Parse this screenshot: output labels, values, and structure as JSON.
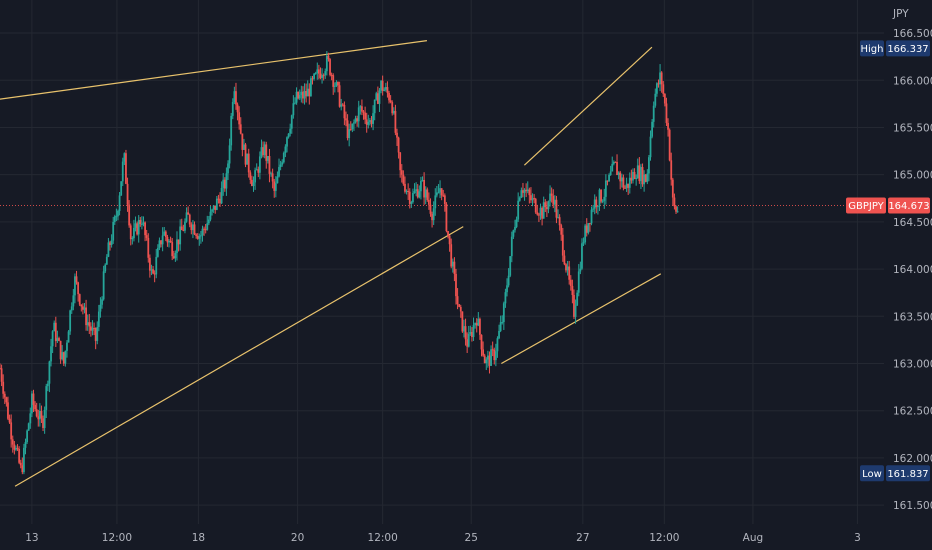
{
  "chart_data": {
    "type": "candlestick",
    "symbol": "GBPJPY",
    "currency": "JPY",
    "last_price": 164.673,
    "high": 166.337,
    "low": 161.837,
    "ylim": [
      161.3,
      166.85
    ],
    "y_ticks": [
      "166.500",
      "166.000",
      "165.500",
      "165.000",
      "164.500",
      "164.000",
      "163.500",
      "163.000",
      "162.500",
      "162.000",
      "161.500"
    ],
    "x_ticks": [
      "13",
      "12:00",
      "18",
      "20",
      "12:00",
      "25",
      "27",
      "12:00",
      "Aug",
      "3"
    ],
    "grid": true,
    "price_path": [
      [
        0.0,
        162.95
      ],
      [
        0.6,
        162.3
      ],
      [
        1.2,
        161.85
      ],
      [
        1.8,
        162.6
      ],
      [
        2.4,
        162.35
      ],
      [
        3.0,
        163.4
      ],
      [
        3.6,
        163.0
      ],
      [
        4.2,
        163.9
      ],
      [
        4.8,
        163.5
      ],
      [
        5.4,
        163.25
      ],
      [
        6.0,
        164.1
      ],
      [
        6.6,
        164.6
      ],
      [
        7.0,
        165.2
      ],
      [
        7.4,
        164.3
      ],
      [
        8.0,
        164.55
      ],
      [
        8.6,
        163.9
      ],
      [
        9.2,
        164.4
      ],
      [
        9.8,
        164.2
      ],
      [
        10.6,
        164.55
      ],
      [
        11.3,
        164.35
      ],
      [
        12.0,
        164.6
      ],
      [
        12.8,
        164.95
      ],
      [
        13.2,
        166.0
      ],
      [
        13.7,
        165.3
      ],
      [
        14.3,
        164.9
      ],
      [
        14.9,
        165.3
      ],
      [
        15.5,
        164.8
      ],
      [
        16.1,
        165.35
      ],
      [
        16.7,
        165.8
      ],
      [
        17.3,
        165.85
      ],
      [
        17.9,
        166.05
      ],
      [
        18.5,
        166.2
      ],
      [
        19.1,
        165.85
      ],
      [
        19.7,
        165.4
      ],
      [
        20.3,
        165.7
      ],
      [
        20.9,
        165.55
      ],
      [
        21.5,
        165.95
      ],
      [
        22.1,
        165.8
      ],
      [
        22.6,
        165.0
      ],
      [
        23.2,
        164.75
      ],
      [
        23.8,
        164.9
      ],
      [
        24.4,
        164.6
      ],
      [
        24.9,
        164.9
      ],
      [
        25.4,
        164.2
      ],
      [
        25.9,
        163.55
      ],
      [
        26.4,
        163.2
      ],
      [
        26.9,
        163.5
      ],
      [
        27.4,
        163.0
      ],
      [
        27.9,
        163.1
      ],
      [
        28.4,
        163.5
      ],
      [
        28.9,
        164.3
      ],
      [
        29.4,
        164.9
      ],
      [
        29.9,
        164.75
      ],
      [
        30.6,
        164.6
      ],
      [
        31.2,
        164.8
      ],
      [
        31.8,
        164.2
      ],
      [
        32.4,
        163.55
      ],
      [
        32.9,
        164.3
      ],
      [
        33.5,
        164.7
      ],
      [
        34.1,
        164.8
      ],
      [
        34.7,
        165.1
      ],
      [
        35.3,
        164.85
      ],
      [
        35.9,
        165.05
      ],
      [
        36.5,
        164.95
      ],
      [
        36.9,
        165.8
      ],
      [
        37.3,
        166.05
      ],
      [
        37.7,
        165.5
      ],
      [
        38.0,
        164.65
      ],
      [
        38.3,
        164.6
      ]
    ],
    "x_range": [
      0,
      49.9
    ],
    "trend_lines": [
      {
        "p1": [
          0.0,
          165.8
        ],
        "p2": [
          24.1,
          166.42
        ]
      },
      {
        "p1": [
          0.85,
          161.7
        ],
        "p2": [
          26.15,
          164.45
        ]
      },
      {
        "p1": [
          28.3,
          163.0
        ],
        "p2": [
          37.3,
          163.95
        ]
      },
      {
        "p1": [
          29.6,
          165.1
        ],
        "p2": [
          36.8,
          166.35
        ]
      }
    ],
    "colors": {
      "background": "#161a25",
      "grid": "#242832",
      "up": "#26a69a",
      "down": "#ef5350",
      "trend_line": "#e8c26c",
      "price_line": "#ef5350",
      "badge_bg": "#1e3a6e"
    }
  },
  "labels": {
    "high": "High",
    "low": "Low"
  }
}
